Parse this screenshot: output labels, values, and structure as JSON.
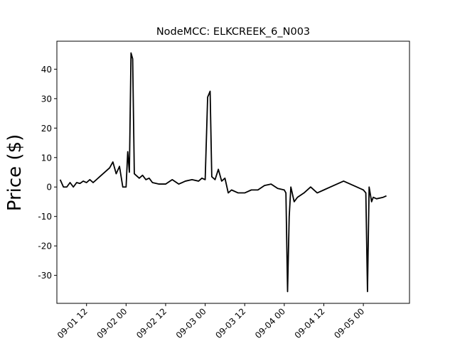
{
  "chart_data": {
    "type": "line",
    "title": "NodeMCC: ELKCREEK_6_N003",
    "xlabel": "",
    "ylabel": "Price ($)",
    "grid": false,
    "legend": false,
    "line_color": "#000000",
    "x_ticks": [
      "09-01 12",
      "09-02 00",
      "09-02 12",
      "09-03 00",
      "09-03 12",
      "09-04 00",
      "09-04 12",
      "09-05 00"
    ],
    "y_ticks": [
      -30,
      -20,
      -10,
      0,
      10,
      20,
      30,
      40
    ],
    "xlim": [
      "2023-09-01 03:00",
      "2023-09-05 14:00"
    ],
    "ylim": [
      -39.5,
      49.5
    ],
    "series": [
      {
        "x": [
          "2023-09-01 04:00",
          "2023-09-01 05:00",
          "2023-09-01 06:00",
          "2023-09-01 07:00",
          "2023-09-01 08:00",
          "2023-09-01 09:00",
          "2023-09-01 10:00",
          "2023-09-01 11:00",
          "2023-09-01 12:00",
          "2023-09-01 13:00",
          "2023-09-01 14:00",
          "2023-09-01 15:00",
          "2023-09-01 16:00",
          "2023-09-01 17:00",
          "2023-09-01 18:00",
          "2023-09-01 19:00",
          "2023-09-01 20:00",
          "2023-09-01 21:00",
          "2023-09-01 22:00",
          "2023-09-01 23:00",
          "2023-09-02 00:00",
          "2023-09-02 00:30",
          "2023-09-02 01:00",
          "2023-09-02 01:30",
          "2023-09-02 02:00",
          "2023-09-02 02:30",
          "2023-09-02 03:00",
          "2023-09-02 04:00",
          "2023-09-02 05:00",
          "2023-09-02 06:00",
          "2023-09-02 07:00",
          "2023-09-02 08:00",
          "2023-09-02 10:00",
          "2023-09-02 12:00",
          "2023-09-02 14:00",
          "2023-09-02 16:00",
          "2023-09-02 18:00",
          "2023-09-02 20:00",
          "2023-09-02 22:00",
          "2023-09-02 23:00",
          "2023-09-03 00:00",
          "2023-09-03 00:45",
          "2023-09-03 01:30",
          "2023-09-03 02:00",
          "2023-09-03 03:00",
          "2023-09-03 04:00",
          "2023-09-03 05:00",
          "2023-09-03 06:00",
          "2023-09-03 07:00",
          "2023-09-03 08:00",
          "2023-09-03 10:00",
          "2023-09-03 12:00",
          "2023-09-03 14:00",
          "2023-09-03 16:00",
          "2023-09-03 18:00",
          "2023-09-03 20:00",
          "2023-09-03 22:00",
          "2023-09-04 00:00",
          "2023-09-04 00:30",
          "2023-09-04 01:00",
          "2023-09-04 01:30",
          "2023-09-04 02:00",
          "2023-09-04 03:00",
          "2023-09-04 04:00",
          "2023-09-04 06:00",
          "2023-09-04 08:00",
          "2023-09-04 10:00",
          "2023-09-04 12:00",
          "2023-09-04 14:00",
          "2023-09-04 16:00",
          "2023-09-04 18:00",
          "2023-09-04 20:00",
          "2023-09-04 22:00",
          "2023-09-05 00:00",
          "2023-09-05 00:45",
          "2023-09-05 01:15",
          "2023-09-05 01:45",
          "2023-09-05 02:30",
          "2023-09-05 03:00",
          "2023-09-05 04:00",
          "2023-09-05 06:00",
          "2023-09-05 07:00"
        ],
        "y": [
          2.5,
          0,
          0,
          1.5,
          0,
          1.5,
          1.2,
          2.0,
          1.5,
          2.5,
          1.5,
          2.5,
          3.5,
          4.5,
          5.5,
          6.5,
          8.5,
          4.5,
          7.0,
          0,
          0,
          12.0,
          5.0,
          45.5,
          43.5,
          4.5,
          4.0,
          3.0,
          4.0,
          2.5,
          3.0,
          1.5,
          1.0,
          1.0,
          2.5,
          1.0,
          2.0,
          2.5,
          2.0,
          3.0,
          2.5,
          30.5,
          32.5,
          3.5,
          2.5,
          6.0,
          2.0,
          3.0,
          -2.0,
          -1.0,
          -2.0,
          -2.0,
          -1.0,
          -1.0,
          0.5,
          1.0,
          -0.5,
          -1.0,
          -2.0,
          -35.5,
          -10.0,
          0,
          -5.0,
          -3.5,
          -2.0,
          0,
          -2.0,
          -1.0,
          0,
          1.0,
          2.0,
          1.0,
          0,
          -1.0,
          -2.0,
          -35.5,
          0,
          -5.0,
          -3.5,
          -4.0,
          -3.5,
          -3.0
        ]
      }
    ]
  }
}
